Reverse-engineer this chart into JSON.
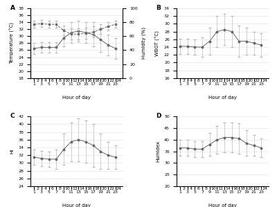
{
  "hours_odd": [
    1,
    3,
    5,
    7,
    9,
    11,
    13,
    15,
    17,
    19,
    21,
    23
  ],
  "hours_even": [
    2,
    4,
    6,
    8,
    10,
    12,
    14,
    16,
    18,
    20,
    22,
    24
  ],
  "hours_all": [
    1,
    2,
    3,
    4,
    5,
    6,
    7,
    8,
    9,
    10,
    11,
    12,
    13,
    14,
    15,
    16,
    17,
    18,
    19,
    20,
    21,
    22,
    23,
    24
  ],
  "temp_mean": [
    26.5,
    26.8,
    26.8,
    26.8,
    29.5,
    31.0,
    31.5,
    31.0,
    30.5,
    29.0,
    27.5,
    26.5
  ],
  "temp_err": [
    1.5,
    1.5,
    1.5,
    1.5,
    2.5,
    3.0,
    3.0,
    3.0,
    3.5,
    3.5,
    3.0,
    3.0
  ],
  "humid_mean": [
    77,
    78,
    77,
    77,
    68,
    63,
    63,
    64,
    66,
    70,
    74,
    77
  ],
  "humid_err": [
    5,
    5,
    5,
    5,
    7,
    8,
    8,
    8,
    8,
    7,
    6,
    5
  ],
  "wbgt_mean": [
    24.2,
    24.2,
    24.0,
    24.0,
    25.5,
    28.0,
    28.5,
    28.0,
    25.5,
    25.5,
    25.0,
    24.5
  ],
  "wbgt_err": [
    2.0,
    2.0,
    2.0,
    2.5,
    3.5,
    4.0,
    4.0,
    4.0,
    4.0,
    3.5,
    3.0,
    3.0
  ],
  "hi_mean": [
    31.5,
    31.2,
    31.0,
    31.0,
    33.5,
    35.5,
    36.0,
    35.5,
    34.5,
    33.0,
    32.0,
    31.5
  ],
  "hi_err": [
    2.0,
    2.0,
    2.0,
    2.5,
    4.0,
    5.0,
    5.5,
    5.5,
    5.5,
    4.5,
    3.5,
    3.0
  ],
  "humidex_mean": [
    36.5,
    36.5,
    36.0,
    36.0,
    38.0,
    40.0,
    41.0,
    41.0,
    40.5,
    38.5,
    37.5,
    36.5
  ],
  "humidex_err": [
    3.5,
    3.5,
    3.5,
    3.5,
    5.0,
    6.0,
    6.5,
    6.5,
    6.5,
    5.5,
    4.5,
    4.0
  ],
  "line_color": "#666666",
  "err_color": "#bbbbbb",
  "background": "#ffffff",
  "panel_labels": [
    "A",
    "B",
    "C",
    "D"
  ],
  "xlim": [
    0,
    25
  ],
  "xticks_odd": [
    1,
    3,
    5,
    7,
    9,
    11,
    13,
    15,
    17,
    19,
    21,
    23
  ],
  "xticks_even": [
    2,
    4,
    6,
    8,
    10,
    12,
    14,
    16,
    18,
    20,
    22,
    24
  ],
  "xlabel": "Hour of day",
  "ylabel_A": "Temperature (°C)",
  "ylabel_A2": "Humidity (%)",
  "ylabel_B": "WBGT (°C)",
  "ylabel_C": "HI",
  "ylabel_D": "Humidex",
  "ylim_A": [
    18,
    38
  ],
  "yticks_A": [
    18,
    20,
    22,
    24,
    26,
    28,
    30,
    32,
    34,
    36,
    38
  ],
  "ylim_A2": [
    0,
    100
  ],
  "yticks_A2": [
    0,
    20,
    40,
    60,
    80,
    100
  ],
  "ylim_B": [
    16,
    34
  ],
  "yticks_B": [
    16,
    18,
    20,
    22,
    24,
    26,
    28,
    30,
    32,
    34
  ],
  "ylim_C": [
    24,
    42
  ],
  "yticks_C": [
    24,
    26,
    28,
    30,
    32,
    34,
    36,
    38,
    40,
    42
  ],
  "ylim_D": [
    20,
    50
  ],
  "yticks_D": [
    20,
    25,
    30,
    35,
    40,
    45,
    50
  ]
}
